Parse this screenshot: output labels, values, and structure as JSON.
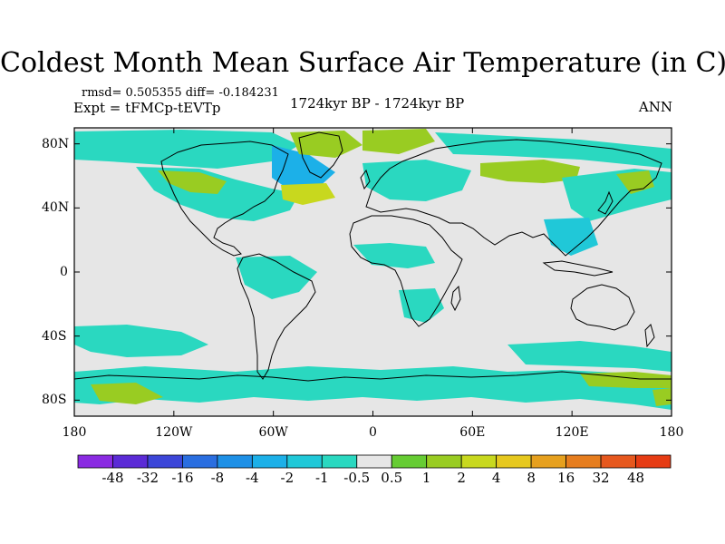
{
  "title": "Coldest Month Mean Surface Air Temperature (in C)",
  "stats_text": "rmsd= 0.505355 diff= -0.184231",
  "experiment": "Expt = tFMCp-tEVTp",
  "period": "1724kyr BP - 1724kyr BP",
  "season": "ANN",
  "map": {
    "lat_labels": [
      {
        "text": "80N",
        "lat": 80
      },
      {
        "text": "40N",
        "lat": 40
      },
      {
        "text": "0",
        "lat": 0
      },
      {
        "text": "40S",
        "lat": -40
      },
      {
        "text": "80S",
        "lat": -80
      }
    ],
    "lon_labels": [
      {
        "text": "180",
        "lon": -180
      },
      {
        "text": "120W",
        "lon": -120
      },
      {
        "text": "60W",
        "lon": -60
      },
      {
        "text": "0",
        "lon": 0
      },
      {
        "text": "60E",
        "lon": 60
      },
      {
        "text": "120E",
        "lon": 120
      },
      {
        "text": "180",
        "lon": 180
      }
    ],
    "lon_range": [
      -180,
      180
    ],
    "lat_range": [
      -90,
      90
    ],
    "background_color": "#e6e6e6"
  },
  "colorbar": {
    "colors": [
      "#8a2be2",
      "#5b2bd6",
      "#3c46d8",
      "#2a6ee0",
      "#1e90e6",
      "#1cb0e8",
      "#20c8d8",
      "#2ad8c0",
      "#e6e6e6",
      "#66cc33",
      "#99cc22",
      "#c8d81e",
      "#e6c81e",
      "#e6a01e",
      "#e67d1e",
      "#e6581e",
      "#e63c14"
    ],
    "labels": [
      "-48",
      "-32",
      "-16",
      "-8",
      "-4",
      "-2",
      "-1",
      "-0.5",
      "0.5",
      "1",
      "2",
      "4",
      "8",
      "16",
      "32",
      "48"
    ]
  }
}
